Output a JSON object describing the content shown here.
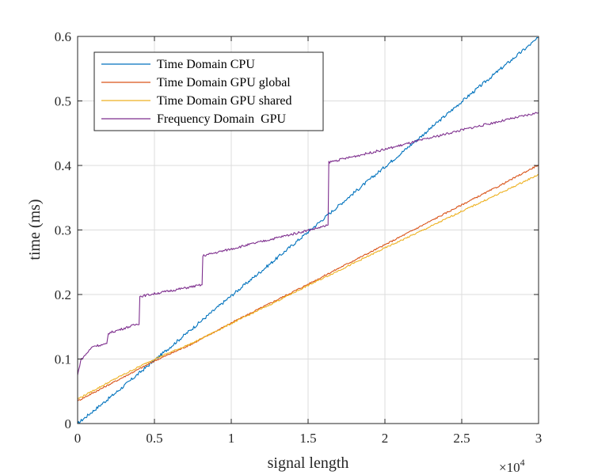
{
  "chart_data": {
    "type": "line",
    "xlabel": "signal length",
    "ylabel": "time (ms)",
    "x_exponent_label": "×10",
    "x_exponent_power": "4",
    "xlim": [
      0,
      30000
    ],
    "ylim": [
      0,
      0.6
    ],
    "x_ticks": [
      0,
      5000,
      10000,
      15000,
      20000,
      25000,
      30000
    ],
    "x_tick_labels": [
      "0",
      "0.5",
      "1",
      "1.5",
      "2",
      "2.5",
      "3"
    ],
    "y_ticks": [
      0,
      0.1,
      0.2,
      0.3,
      0.4,
      0.5,
      0.6
    ],
    "y_tick_labels": [
      "0",
      "0.1",
      "0.2",
      "0.3",
      "0.4",
      "0.5",
      "0.6"
    ],
    "grid": true,
    "legend_position": "top-left",
    "series": [
      {
        "name": "Time Domain CPU",
        "color": "#0072BD",
        "x": [
          0,
          2500,
          5000,
          7500,
          10000,
          12500,
          15000,
          17500,
          20000,
          22500,
          25000,
          27500,
          30000
        ],
        "y": [
          0.0,
          0.048,
          0.098,
          0.148,
          0.198,
          0.247,
          0.297,
          0.348,
          0.398,
          0.448,
          0.499,
          0.549,
          0.598
        ]
      },
      {
        "name": "Time Domain GPU global",
        "color": "#D95319",
        "x": [
          0,
          2500,
          5000,
          7500,
          10000,
          12500,
          15000,
          17500,
          20000,
          22500,
          25000,
          27500,
          30000
        ],
        "y": [
          0.035,
          0.066,
          0.097,
          0.124,
          0.156,
          0.186,
          0.216,
          0.247,
          0.277,
          0.308,
          0.339,
          0.369,
          0.401
        ]
      },
      {
        "name": "Time Domain GPU shared",
        "color": "#EDB120",
        "x": [
          0,
          2500,
          5000,
          7500,
          10000,
          12500,
          15000,
          17500,
          20000,
          22500,
          25000,
          27500,
          30000
        ],
        "y": [
          0.038,
          0.07,
          0.1,
          0.125,
          0.155,
          0.184,
          0.214,
          0.243,
          0.272,
          0.3,
          0.329,
          0.357,
          0.386
        ]
      },
      {
        "name": "Frequency Domain  GPU",
        "color": "#7E2F8E",
        "x": [
          0,
          200,
          1000,
          1900,
          2000,
          4000,
          4050,
          8100,
          8150,
          16300,
          16350,
          20000,
          25000,
          30000
        ],
        "y": [
          0.075,
          0.098,
          0.12,
          0.123,
          0.14,
          0.155,
          0.197,
          0.215,
          0.26,
          0.307,
          0.405,
          0.425,
          0.455,
          0.482
        ]
      }
    ]
  }
}
